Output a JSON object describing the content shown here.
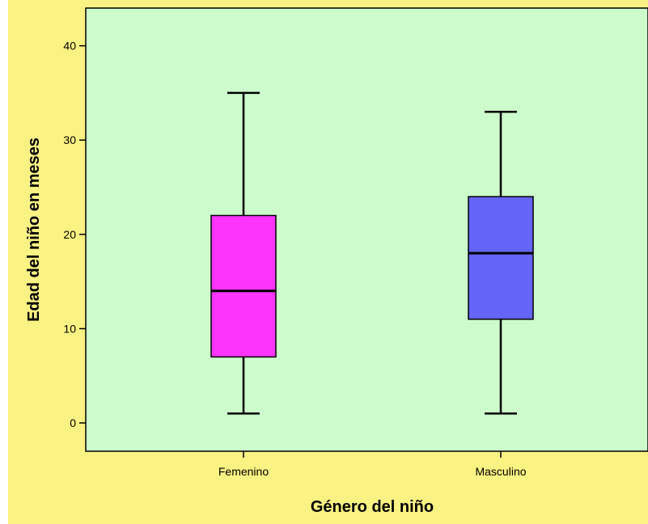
{
  "colors": {
    "outer_background": "#faf282",
    "plot_background": "#ccfccc",
    "axis": "#000000"
  },
  "chart_data": {
    "type": "boxplot",
    "xlabel": "Género del niño",
    "ylabel": "Edad del niño en meses",
    "ylim": [
      -3,
      44
    ],
    "yticks": [
      0,
      10,
      20,
      30,
      40
    ],
    "categories": [
      "Femenino",
      "Masculino"
    ],
    "boxes": [
      {
        "category": "Femenino",
        "min": 1,
        "q1": 7,
        "median": 14,
        "q3": 22,
        "max": 35,
        "color": "#fc34fc"
      },
      {
        "category": "Masculino",
        "min": 1,
        "q1": 11,
        "median": 18,
        "q3": 24,
        "max": 33,
        "color": "#6464f8"
      }
    ],
    "grid": false,
    "legend": "none"
  }
}
